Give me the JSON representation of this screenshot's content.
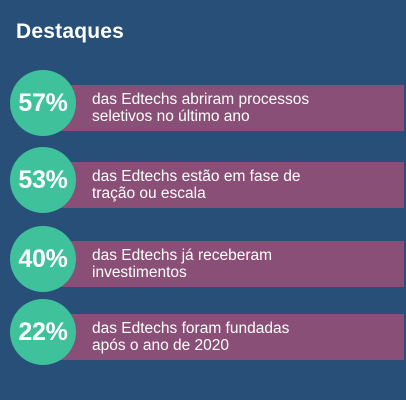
{
  "title": "Destaques",
  "colors": {
    "background": "#274f77",
    "circle": "#3fc19b",
    "bar": "#8a4f76",
    "text": "#ffffff"
  },
  "stats": [
    {
      "value": "57%",
      "text": "das Edtechs abriram processos\nseletivos no último ano"
    },
    {
      "value": "53%",
      "text": "das Edtechs estão em fase de\ntração ou escala"
    },
    {
      "value": "40%",
      "text": "das Edtechs já receberam\ninvestimentos"
    },
    {
      "value": "22%",
      "text": "das Edtechs foram fundadas\napós o ano de 2020"
    }
  ]
}
